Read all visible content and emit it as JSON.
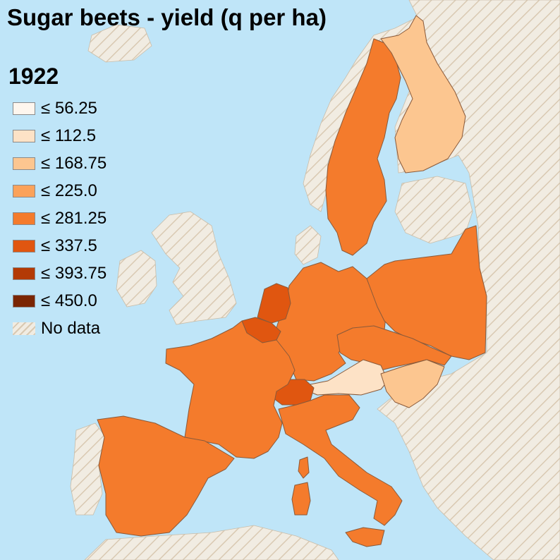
{
  "title": "Sugar beets - yield (q per ha)",
  "year": "1922",
  "legend": [
    {
      "label": "≤ 56.25",
      "color": "#fef6ee"
    },
    {
      "label": "≤ 112.5",
      "color": "#fde2c6"
    },
    {
      "label": "≤ 168.75",
      "color": "#fcc690"
    },
    {
      "label": "≤ 225.0",
      "color": "#fba25a"
    },
    {
      "label": "≤ 281.25",
      "color": "#f47b2c"
    },
    {
      "label": "≤ 337.5",
      "color": "#e05610"
    },
    {
      "label": "≤ 393.75",
      "color": "#b33a05"
    },
    {
      "label": "≤ 450.0",
      "color": "#7a2503"
    },
    {
      "label": "No data",
      "color": "nodata"
    }
  ],
  "colors": {
    "sea": "#bfe5f8",
    "nodata_base": "#f1ece2",
    "nodata_hatch": "#d9c9b2",
    "border": "#8a5a3a"
  },
  "regions": {
    "sweden": "≤ 281.25",
    "finland": "≤ 168.75",
    "germany": "≤ 281.25",
    "poland": "≤ 281.25",
    "czechoslovakia": "≤ 281.25",
    "austria": "≤ 112.5",
    "hungary": "≤ 168.75",
    "france": "≤ 281.25",
    "spain": "≤ 281.25",
    "italy": "≤ 281.25",
    "netherlands": "≤ 337.5",
    "belgium": "≤ 337.5",
    "switzerland": "≤ 337.5"
  }
}
